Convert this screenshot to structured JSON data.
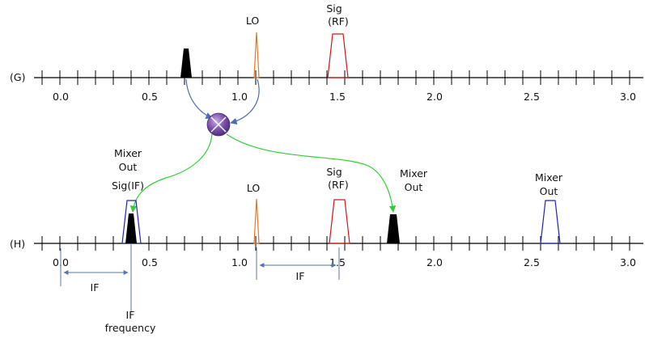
{
  "colors": {
    "axis": "#000000",
    "lo": "#e0782a",
    "rf": "#d01818",
    "mixer_out_upper": "#2222bb",
    "if_pulse": "#2222bb",
    "arrow_blue": "#4a6fb0",
    "arrow_green": "#33cc33",
    "mixer_fill": "#7a4fa8",
    "measure": "#5577aa"
  },
  "axis_g": {
    "row_label": "(G)",
    "ticks": [
      "0.0",
      "0.5",
      "1.0",
      "1.5",
      "2.0",
      "2.5",
      "3.0"
    ]
  },
  "axis_h": {
    "row_label": "(H)",
    "ticks": [
      "0.0",
      "0.5",
      "1.0",
      "1.5",
      "2.0",
      "2.5",
      "3.0"
    ]
  },
  "labels": {
    "g_lo": "LO",
    "g_sig_line1": "Sig",
    "g_sig_line2": "(RF)",
    "h_mixer_out_left_line1": "Mixer",
    "h_mixer_out_left_line2": "Out",
    "h_sig_if": "Sig(IF)",
    "h_lo": "LO",
    "h_sig_line1": "Sig",
    "h_sig_line2": "(RF)",
    "h_mixer_out_mid_line1": "Mixer",
    "h_mixer_out_mid_line2": "Out",
    "h_mixer_out_right_line1": "Mixer",
    "h_mixer_out_right_line2": "Out",
    "if_left": "IF",
    "if_right": "IF",
    "if_freq_line1": "IF",
    "if_freq_line2": "frequency"
  },
  "icons": {
    "mixer": "mixer-cross-circle-icon"
  }
}
